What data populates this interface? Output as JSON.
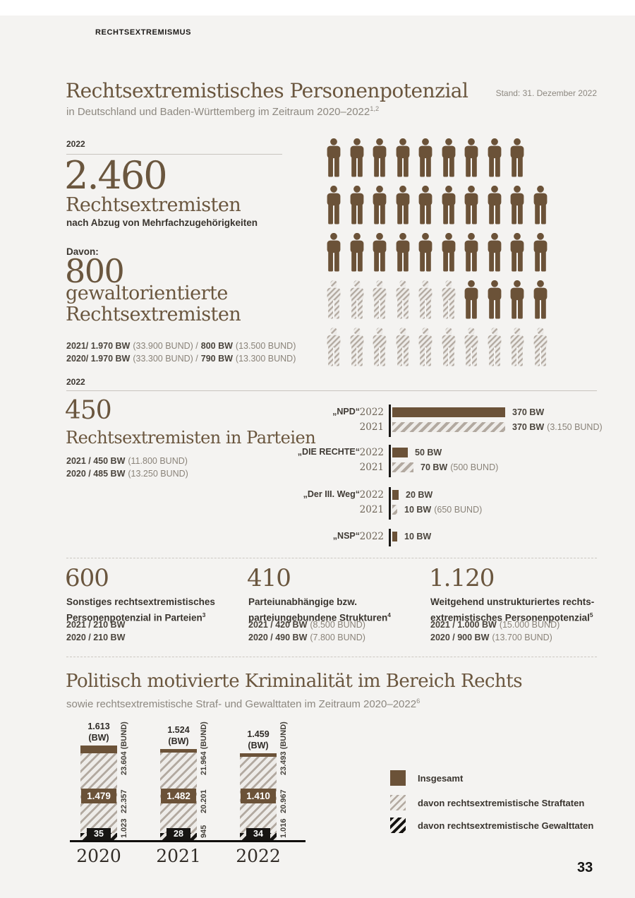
{
  "page": {
    "kicker": "RECHTSEXTREMISMUS",
    "page_number": "33"
  },
  "section1": {
    "title": "Rechtsextremistisches Personenpotenzial",
    "stand": "Stand: 31. Dezember 2022",
    "subtitle": "in Deutschland und Baden-Württemberg im Zeitraum 2020–2022",
    "subtitle_sup": "1,2",
    "year_label": "2022",
    "big_number": "2.460",
    "big_label": "Rechtsextremisten",
    "note": "nach Abzug von Mehrfachzugehörigkeiten",
    "davon": "Davon:",
    "sub_number": "800",
    "sub_label1": "gewaltorientierte",
    "sub_label2": "Rechtsextremisten",
    "history": [
      {
        "b1": "2021/ 1.970 BW",
        "r1": "(33.900 BUND) /",
        "b2": "800 BW",
        "r2": "(13.500 BUND)"
      },
      {
        "b1": "2020/ 1.970 BW",
        "r1": "(33.300 BUND) /",
        "b2": "790 BW",
        "r2": "(13.300 BUND)"
      }
    ],
    "year_label2": "2022",
    "pictogram": {
      "meaning_solid": "Rechtsextremisten",
      "meaning_hatched": "davon gewaltorientiert",
      "rows": [
        "SSSSSSSSS",
        "SSSSSSSSSS",
        "SSSSSSSSSS",
        "HHHHHHSSSS",
        "HHHHHHHHHH"
      ]
    }
  },
  "parties": {
    "number": "450",
    "label": "Rechtsextremisten in Parteien",
    "history": [
      {
        "b1": "2021 / 450 BW",
        "r1": "(11.800 BUND)"
      },
      {
        "b1": "2020 / 485 BW",
        "r1": "(13.250 BUND)"
      }
    ],
    "chart_data": {
      "type": "bar",
      "unit": "Personen (BW)",
      "groups": [
        {
          "party": "„NPD“",
          "rows": [
            {
              "year": "2022",
              "style": "solid",
              "value": 370,
              "bold": "370 BW",
              "reg": ""
            },
            {
              "year": "2021",
              "style": "hatched",
              "value": 370,
              "bold": "370 BW",
              "reg": "(3.150 BUND)"
            }
          ]
        },
        {
          "party": "„DIE RECHTE“",
          "rows": [
            {
              "year": "2022",
              "style": "solid",
              "value": 50,
              "bold": "50 BW",
              "reg": ""
            },
            {
              "year": "2021",
              "style": "hatched",
              "value": 70,
              "bold": "70 BW",
              "reg": "(500 BUND)"
            }
          ]
        },
        {
          "party": "„Der III. Weg“",
          "rows": [
            {
              "year": "2022",
              "style": "solid",
              "value": 20,
              "bold": "20 BW",
              "reg": ""
            },
            {
              "year": "2021",
              "style": "hatched",
              "value": 10,
              "bold": "10 BW",
              "reg": "(650 BUND)"
            }
          ]
        },
        {
          "party": "„NSP“",
          "rows": [
            {
              "year": "2022",
              "style": "solid",
              "value": 10,
              "bold": "10 BW",
              "reg": ""
            }
          ]
        }
      ]
    }
  },
  "potential_columns": [
    {
      "number": "600",
      "desc1": "Sonstiges rechtsextremistisches",
      "desc2": "Personenpotenzial in Parteien",
      "sup": "3",
      "stats": [
        {
          "b": "2021 / 210 BW",
          "r": ""
        },
        {
          "b": "2020 / 210 BW",
          "r": ""
        }
      ]
    },
    {
      "number": "410",
      "desc1": "Parteiunabhängige bzw.",
      "desc2": "parteiungebundene Strukturen",
      "sup": "4",
      "stats": [
        {
          "b": "2021 / 420 BW",
          "r": "(8.500 BUND)"
        },
        {
          "b": "2020 / 490 BW",
          "r": "(7.800 BUND)"
        }
      ]
    },
    {
      "number": "1.120",
      "desc1": "Weitgehend unstrukturiertes rechts-",
      "desc2": "extremistisches Personenpotenzial",
      "sup": "5",
      "stats": [
        {
          "b": "2021 / 1.000 BW",
          "r": "(15.000 BUND)"
        },
        {
          "b": "2020 / 900 BW",
          "r": "(13.700 BUND)"
        }
      ]
    }
  ],
  "crime": {
    "title": "Politisch motivierte Kriminalität im Bereich Rechts",
    "subtitle": "sowie rechtsextremistische Straf- und Gewalttaten im Zeitraum 2020–2022",
    "subtitle_sup": "6",
    "chart_data": {
      "type": "bar",
      "stacked": true,
      "categories": [
        "2020",
        "2021",
        "2022"
      ],
      "series_bw": [
        {
          "name": "Insgesamt (BW)",
          "values": [
            1613,
            1524,
            1459
          ]
        },
        {
          "name": "davon rechtsextremistische Straftaten (BW)",
          "values": [
            1479,
            1482,
            1410
          ]
        },
        {
          "name": "davon rechtsextremistische Gewalttaten (BW)",
          "values": [
            35,
            28,
            34
          ]
        }
      ],
      "series_bund": [
        {
          "name": "Insgesamt (BUND)",
          "values": [
            23604,
            21964,
            23493
          ]
        },
        {
          "name": "davon rechtsextremistische Straftaten (BUND)",
          "values": [
            22357,
            20201,
            20967
          ]
        },
        {
          "name": "davon rechtsextremistische Gewalttaten (BUND)",
          "values": [
            1023,
            945,
            1016
          ]
        }
      ],
      "bars": [
        {
          "year": "2020",
          "total": "1.613",
          "total_suffix": "(BW)",
          "straftaten": "1.479",
          "gewalttaten": "35",
          "bund_total": "23.604 (BUND)",
          "bund_straftaten": "22.357",
          "bund_gewalttaten": "1.023"
        },
        {
          "year": "2021",
          "total": "1.524",
          "total_suffix": "(BW)",
          "straftaten": "1.482",
          "gewalttaten": "28",
          "bund_total": "21.964 (BUND)",
          "bund_straftaten": "20.201",
          "bund_gewalttaten": "945"
        },
        {
          "year": "2022",
          "total": "1.459",
          "total_suffix": "(BW)",
          "straftaten": "1.410",
          "gewalttaten": "34",
          "bund_total": "23.493 (BUND)",
          "bund_straftaten": "20.967",
          "bund_gewalttaten": "1.016"
        }
      ],
      "legend": [
        {
          "style": "solid",
          "label": "Insgesamt"
        },
        {
          "style": "hatch-light",
          "label": "davon rechtsextremistische Straftaten"
        },
        {
          "style": "hatch-dark",
          "label": "davon rechtsextremistische Gewalttaten"
        }
      ]
    }
  },
  "colors": {
    "brown": "#6b5238",
    "brown_text": "#6a563e",
    "dark_text": "#3a352f",
    "gray_text": "#8d8880",
    "black": "#171513",
    "background": "#f4f3f1"
  }
}
